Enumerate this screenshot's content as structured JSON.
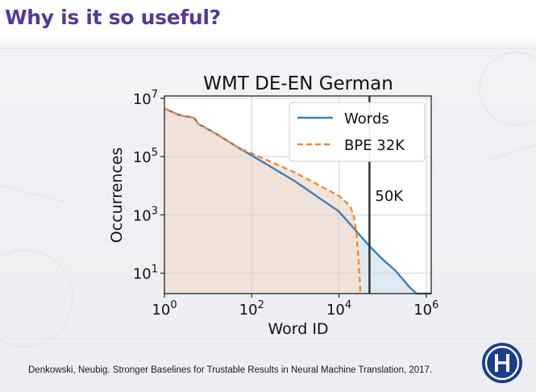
{
  "slide": {
    "title": "Why is it so useful?",
    "citation": "Denkowski, Neubig. Stronger Baselines for Trustable Results in Neural Machine Translation, 2017.",
    "title_color": "#55389a"
  },
  "logo": {
    "icon": "hse-university-logo-icon",
    "color": "#1a3e8c"
  },
  "chart_data": {
    "type": "line",
    "title": "WMT DE-EN German",
    "xlabel": "Word ID",
    "ylabel": "Occurrences",
    "x_scale": "log",
    "y_scale": "log",
    "xlim": [
      1,
      1300000
    ],
    "ylim": [
      2,
      12000000
    ],
    "x_ticks": [
      {
        "value": 1,
        "base": "10",
        "exp": "0"
      },
      {
        "value": 100,
        "base": "10",
        "exp": "2"
      },
      {
        "value": 10000,
        "base": "10",
        "exp": "4"
      },
      {
        "value": 1000000,
        "base": "10",
        "exp": "6"
      }
    ],
    "y_ticks": [
      {
        "value": 10,
        "base": "10",
        "exp": "1"
      },
      {
        "value": 1000,
        "base": "10",
        "exp": "3"
      },
      {
        "value": 100000,
        "base": "10",
        "exp": "5"
      },
      {
        "value": 10000000,
        "base": "10",
        "exp": "7"
      }
    ],
    "grid": true,
    "legend_position": "top-right",
    "vline": {
      "x": 50000,
      "label": "50K"
    },
    "series": [
      {
        "name": "Words",
        "color": "#3f7fb5",
        "fill": "#dbe7f1",
        "style": "solid",
        "points": [
          [
            1,
            4500000
          ],
          [
            2,
            2800000
          ],
          [
            3,
            2400000
          ],
          [
            4,
            2300000
          ],
          [
            5,
            2000000
          ],
          [
            6,
            1300000
          ],
          [
            8,
            1050000
          ],
          [
            15,
            620000
          ],
          [
            30,
            320000
          ],
          [
            60,
            170000
          ],
          [
            100,
            110000
          ],
          [
            1000,
            14000
          ],
          [
            10000,
            1300
          ],
          [
            50000,
            85
          ],
          [
            100000,
            30
          ],
          [
            200000,
            12
          ],
          [
            400000,
            3.5
          ],
          [
            600000,
            2
          ],
          [
            1300000,
            2
          ]
        ]
      },
      {
        "name": "BPE 32K",
        "color": "#f08c36",
        "fill": "#f1e1d6",
        "style": "dashed",
        "points": [
          [
            1,
            4500000
          ],
          [
            2,
            2800000
          ],
          [
            3,
            2400000
          ],
          [
            4,
            2300000
          ],
          [
            5,
            2000000
          ],
          [
            6,
            1300000
          ],
          [
            8,
            1050000
          ],
          [
            15,
            620000
          ],
          [
            30,
            320000
          ],
          [
            60,
            175000
          ],
          [
            100,
            130000
          ],
          [
            1000,
            28000
          ],
          [
            10000,
            4500
          ],
          [
            18000,
            2000
          ],
          [
            22000,
            900
          ],
          [
            25000,
            250
          ],
          [
            28000,
            30
          ],
          [
            30000,
            5
          ],
          [
            31000,
            2
          ]
        ]
      }
    ]
  }
}
